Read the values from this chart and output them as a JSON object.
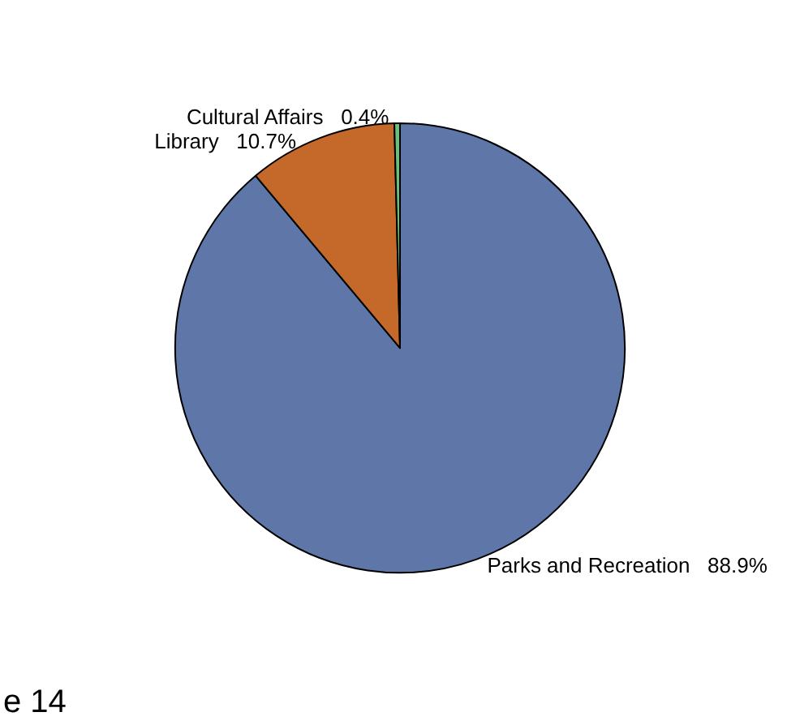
{
  "chart_data": {
    "type": "pie",
    "categories": [
      "Parks and Recreation",
      "Library",
      "Cultural Affairs"
    ],
    "values": [
      88.9,
      10.7,
      0.4
    ],
    "value_labels": [
      "88.9%",
      "10.7%",
      "0.4%"
    ],
    "colors": [
      "#5e76a8",
      "#c4692a",
      "#6cbf7a"
    ],
    "annotations": [
      "e 14"
    ],
    "legend": false
  }
}
